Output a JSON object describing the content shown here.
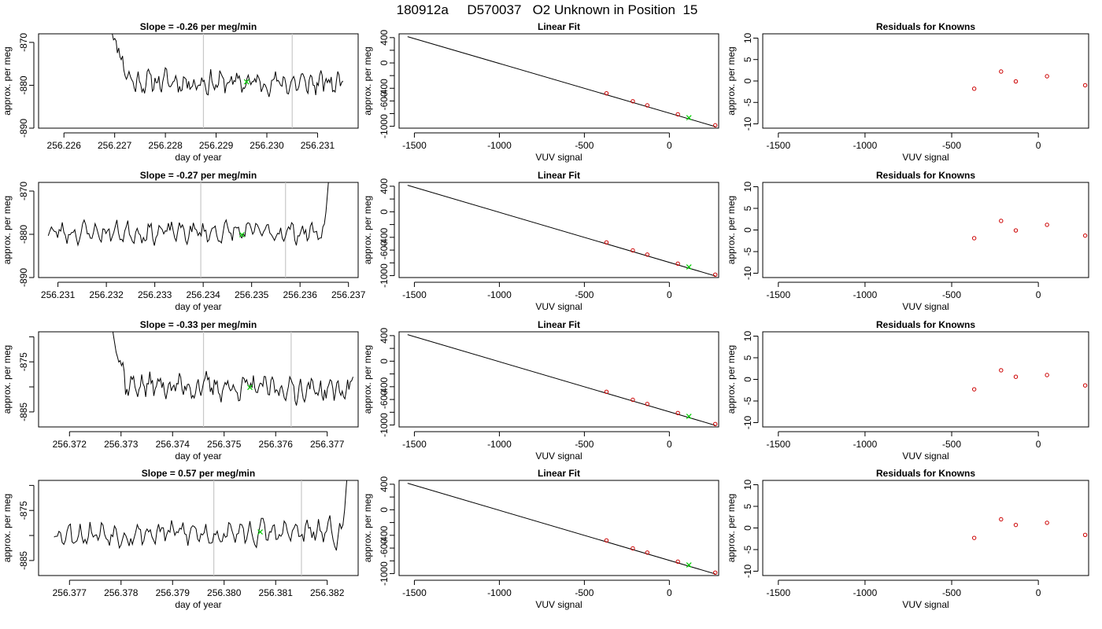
{
  "figure_title": "180912a     D570037   O2 Unknown in Position  15",
  "colors": {
    "trace": "#000000",
    "marker": "#00cc00",
    "known_point": "#cc0000",
    "window_line": "#c8c8c8",
    "fit_line": "#000000"
  },
  "chart_data": [
    {
      "type": "line",
      "row": 1,
      "title": "Slope =  -0.26  per meg/min",
      "xlabel": "day of year",
      "ylabel": "approx. per meg",
      "xlim": [
        256.2255,
        256.2318
      ],
      "ylim": [
        -890,
        -868
      ],
      "xticks": [
        256.226,
        256.227,
        256.228,
        256.229,
        256.23,
        256.231
      ],
      "xtick_labels": [
        "256.226",
        "256.227",
        "256.228",
        "256.229",
        "256.230",
        "256.231"
      ],
      "yticks": [
        -890,
        -880,
        -870
      ],
      "ytick_labels": [
        "-890",
        "-880",
        "-870"
      ],
      "window_lines": [
        256.22875,
        256.2305
      ],
      "marker": {
        "x": 256.2296,
        "y": -879.2
      },
      "trace": {
        "x_start": 256.2269,
        "x_end": 256.2315,
        "start_y": -866,
        "settle_x": 256.2273,
        "mean": -879,
        "amp": 2.8,
        "drift": -0.6,
        "seed": 11,
        "end_y": -879
      }
    },
    {
      "type": "scatter",
      "row": 1,
      "title": "Linear Fit",
      "xlabel": "VUV signal",
      "ylabel": "approx. per meg",
      "xlim": [
        -1590,
        290
      ],
      "ylim": [
        -1030,
        460
      ],
      "xticks": [
        -1500,
        -1000,
        -500,
        0
      ],
      "xtick_labels": [
        "-1500",
        "-1000",
        "-500",
        "0"
      ],
      "yticks": [
        -1000,
        -600,
        -200,
        200
      ],
      "yticks_minor": [
        -800,
        -400,
        0,
        400
      ],
      "ytick_labels": [
        {
          "v": -1000,
          "t": "-1000"
        },
        {
          "v": -600,
          "t": "-600"
        },
        {
          "v": -400,
          "t": "-400"
        },
        {
          "v": 0,
          "t": "0"
        },
        {
          "v": 400,
          "t": "400"
        }
      ],
      "fit_line": {
        "x": [
          -1540,
          270
        ],
        "y": [
          415,
          -1005
        ]
      },
      "points": {
        "x": [
          -370,
          -215,
          -130,
          50,
          270
        ],
        "y": [
          -480,
          -605,
          -670,
          -812,
          -985
        ]
      },
      "unknown_point": {
        "x": 115,
        "y": -865
      }
    },
    {
      "type": "scatter",
      "row": 1,
      "title": "Residuals for Knowns",
      "xlabel": "VUV signal",
      "ylabel": "approx. per meg",
      "xlim": [
        -1590,
        290
      ],
      "ylim": [
        -11,
        11
      ],
      "xticks": [
        -1500,
        -1000,
        -500,
        0
      ],
      "xtick_labels": [
        "-1500",
        "-1000",
        "-500",
        "0"
      ],
      "yticks": [
        -10,
        -5,
        0,
        5,
        10
      ],
      "ytick_labels": [
        "-10",
        "-5",
        "0",
        "5",
        "10"
      ],
      "points": {
        "x": [
          -370,
          -215,
          -130,
          50,
          270
        ],
        "y": [
          -1.8,
          2.2,
          -0.1,
          1.1,
          -1.0
        ]
      }
    },
    {
      "type": "line",
      "row": 2,
      "title": "Slope =  -0.27  per meg/min",
      "xlabel": "day of year",
      "ylabel": "approx. per meg",
      "xlim": [
        256.2306,
        256.2372
      ],
      "ylim": [
        -890,
        -868
      ],
      "xticks": [
        256.231,
        256.232,
        256.233,
        256.234,
        256.235,
        256.236,
        256.237
      ],
      "xtick_labels": [
        "256.231",
        "256.232",
        "256.233",
        "256.234",
        "256.235",
        "256.236",
        "256.237"
      ],
      "yticks": [
        -890,
        -880,
        -870
      ],
      "ytick_labels": [
        "-890",
        "-880",
        "-870"
      ],
      "window_lines": [
        256.23395,
        256.2357
      ],
      "marker": {
        "x": 256.2348,
        "y": -880.1
      },
      "trace": {
        "x_start": 256.2308,
        "x_end": 256.2366,
        "start_y": -878,
        "settle_x": 256.2308,
        "mean": -879.5,
        "amp": 2.5,
        "drift": 0,
        "seed": 23,
        "end_y": -866
      }
    },
    {
      "type": "scatter",
      "row": 2,
      "title": "Linear Fit",
      "xlabel": "VUV signal",
      "ylabel": "approx. per meg",
      "xlim": [
        -1590,
        290
      ],
      "ylim": [
        -1030,
        460
      ],
      "xticks": [
        -1500,
        -1000,
        -500,
        0
      ],
      "xtick_labels": [
        "-1500",
        "-1000",
        "-500",
        "0"
      ],
      "yticks": [
        -1000,
        -600,
        -200,
        200
      ],
      "yticks_minor": [
        -800,
        -400,
        0,
        400
      ],
      "ytick_labels": [
        {
          "v": -1000,
          "t": "-1000"
        },
        {
          "v": -600,
          "t": "-600"
        },
        {
          "v": -400,
          "t": "-400"
        },
        {
          "v": 0,
          "t": "0"
        },
        {
          "v": 400,
          "t": "400"
        }
      ],
      "fit_line": {
        "x": [
          -1540,
          270
        ],
        "y": [
          415,
          -1005
        ]
      },
      "points": {
        "x": [
          -370,
          -215,
          -130,
          50,
          270
        ],
        "y": [
          -480,
          -605,
          -670,
          -812,
          -985
        ]
      },
      "unknown_point": {
        "x": 115,
        "y": -865
      }
    },
    {
      "type": "scatter",
      "row": 2,
      "title": "Residuals for Knowns",
      "xlabel": "VUV signal",
      "ylabel": "approx. per meg",
      "xlim": [
        -1590,
        290
      ],
      "ylim": [
        -11,
        11
      ],
      "xticks": [
        -1500,
        -1000,
        -500,
        0
      ],
      "xtick_labels": [
        "-1500",
        "-1000",
        "-500",
        "0"
      ],
      "yticks": [
        -10,
        -5,
        0,
        5,
        10
      ],
      "ytick_labels": [
        "-10",
        "-5",
        "0",
        "5",
        "10"
      ],
      "points": {
        "x": [
          -370,
          -215,
          -130,
          50,
          270
        ],
        "y": [
          -1.9,
          2.1,
          -0.1,
          1.2,
          -1.3
        ]
      }
    },
    {
      "type": "line",
      "row": 3,
      "title": "Slope =  -0.33  per meg/min",
      "xlabel": "day of year",
      "ylabel": "approx. per meg",
      "xlim": [
        256.3714,
        256.3776
      ],
      "ylim": [
        -888,
        -869
      ],
      "xticks": [
        256.372,
        256.373,
        256.374,
        256.375,
        256.376,
        256.377
      ],
      "xtick_labels": [
        "256.372",
        "256.373",
        "256.374",
        "256.375",
        "256.376",
        "256.377"
      ],
      "yticks": [
        -885,
        -880,
        -875,
        -870
      ],
      "ytick_labels": [
        "-885",
        "",
        "-875",
        ""
      ],
      "window_lines": [
        256.3746,
        256.3763
      ],
      "marker": {
        "x": 256.3755,
        "y": -880.1
      },
      "trace": {
        "x_start": 256.3728,
        "x_end": 256.3775,
        "start_y": -867,
        "settle_x": 256.3731,
        "mean": -879.5,
        "amp": 2.6,
        "drift": -1.2,
        "seed": 37,
        "end_y": -878
      }
    },
    {
      "type": "scatter",
      "row": 3,
      "title": "Linear Fit",
      "xlabel": "VUV signal",
      "ylabel": "approx. per meg",
      "xlim": [
        -1590,
        290
      ],
      "ylim": [
        -1030,
        460
      ],
      "xticks": [
        -1500,
        -1000,
        -500,
        0
      ],
      "xtick_labels": [
        "-1500",
        "-1000",
        "-500",
        "0"
      ],
      "yticks": [
        -1000,
        -600,
        -200,
        200
      ],
      "yticks_minor": [
        -800,
        -400,
        0,
        400
      ],
      "ytick_labels": [
        {
          "v": -1000,
          "t": "-1000"
        },
        {
          "v": -600,
          "t": "-600"
        },
        {
          "v": -400,
          "t": "-400"
        },
        {
          "v": 0,
          "t": "0"
        },
        {
          "v": 400,
          "t": "400"
        }
      ],
      "fit_line": {
        "x": [
          -1540,
          270
        ],
        "y": [
          415,
          -1005
        ]
      },
      "points": {
        "x": [
          -370,
          -215,
          -130,
          50,
          270
        ],
        "y": [
          -480,
          -605,
          -670,
          -812,
          -985
        ]
      },
      "unknown_point": {
        "x": 115,
        "y": -865
      }
    },
    {
      "type": "scatter",
      "row": 3,
      "title": "Residuals for Knowns",
      "xlabel": "VUV signal",
      "ylabel": "approx. per meg",
      "xlim": [
        -1590,
        290
      ],
      "ylim": [
        -11,
        11
      ],
      "xticks": [
        -1500,
        -1000,
        -500,
        0
      ],
      "xtick_labels": [
        "-1500",
        "-1000",
        "-500",
        "0"
      ],
      "yticks": [
        -10,
        -5,
        0,
        5,
        10
      ],
      "ytick_labels": [
        "-10",
        "-5",
        "0",
        "5",
        "10"
      ],
      "points": {
        "x": [
          -370,
          -215,
          -130,
          50,
          270
        ],
        "y": [
          -2.3,
          2.1,
          0.6,
          1.0,
          -1.4
        ]
      }
    },
    {
      "type": "line",
      "row": 4,
      "title": "Slope =  0.57  per meg/min",
      "xlabel": "day of year",
      "ylabel": "approx. per meg",
      "xlim": [
        256.3764,
        256.3826
      ],
      "ylim": [
        -888,
        -869
      ],
      "xticks": [
        256.377,
        256.378,
        256.379,
        256.38,
        256.381,
        256.382
      ],
      "xtick_labels": [
        "256.377",
        "256.378",
        "256.379",
        "256.380",
        "256.381",
        "256.382"
      ],
      "yticks": [
        -885,
        -880,
        -875,
        -870
      ],
      "ytick_labels": [
        "-885",
        "",
        "-875",
        ""
      ],
      "window_lines": [
        256.3798,
        256.3815
      ],
      "marker": {
        "x": 256.3807,
        "y": -879.3
      },
      "trace": {
        "x_start": 256.3767,
        "x_end": 256.3824,
        "start_y": -878.5,
        "settle_x": 256.3767,
        "mean": -879.5,
        "amp": 2.6,
        "drift": 0,
        "seed": 53,
        "end_y": -866
      }
    },
    {
      "type": "scatter",
      "row": 4,
      "title": "Linear Fit",
      "xlabel": "VUV signal",
      "ylabel": "approx. per meg",
      "xlim": [
        -1590,
        290
      ],
      "ylim": [
        -1030,
        460
      ],
      "xticks": [
        -1500,
        -1000,
        -500,
        0
      ],
      "xtick_labels": [
        "-1500",
        "-1000",
        "-500",
        "0"
      ],
      "yticks": [
        -1000,
        -600,
        -200,
        200
      ],
      "yticks_minor": [
        -800,
        -400,
        0,
        400
      ],
      "ytick_labels": [
        {
          "v": -1000,
          "t": "-1000"
        },
        {
          "v": -600,
          "t": "-600"
        },
        {
          "v": -400,
          "t": "-400"
        },
        {
          "v": 0,
          "t": "0"
        },
        {
          "v": 400,
          "t": "400"
        }
      ],
      "fit_line": {
        "x": [
          -1540,
          270
        ],
        "y": [
          415,
          -1005
        ]
      },
      "points": {
        "x": [
          -370,
          -215,
          -130,
          50,
          270
        ],
        "y": [
          -480,
          -605,
          -670,
          -812,
          -985
        ]
      },
      "unknown_point": {
        "x": 115,
        "y": -865
      }
    },
    {
      "type": "scatter",
      "row": 4,
      "title": "Residuals for Knowns",
      "xlabel": "VUV signal",
      "ylabel": "approx. per meg",
      "xlim": [
        -1590,
        290
      ],
      "ylim": [
        -11,
        11
      ],
      "xticks": [
        -1500,
        -1000,
        -500,
        0
      ],
      "xtick_labels": [
        "-1500",
        "-1000",
        "-500",
        "0"
      ],
      "yticks": [
        -10,
        -5,
        0,
        5,
        10
      ],
      "ytick_labels": [
        "-10",
        "-5",
        "0",
        "5",
        "10"
      ],
      "points": {
        "x": [
          -370,
          -215,
          -130,
          50,
          270
        ],
        "y": [
          -2.3,
          2.0,
          0.7,
          1.2,
          -1.6
        ]
      }
    }
  ]
}
